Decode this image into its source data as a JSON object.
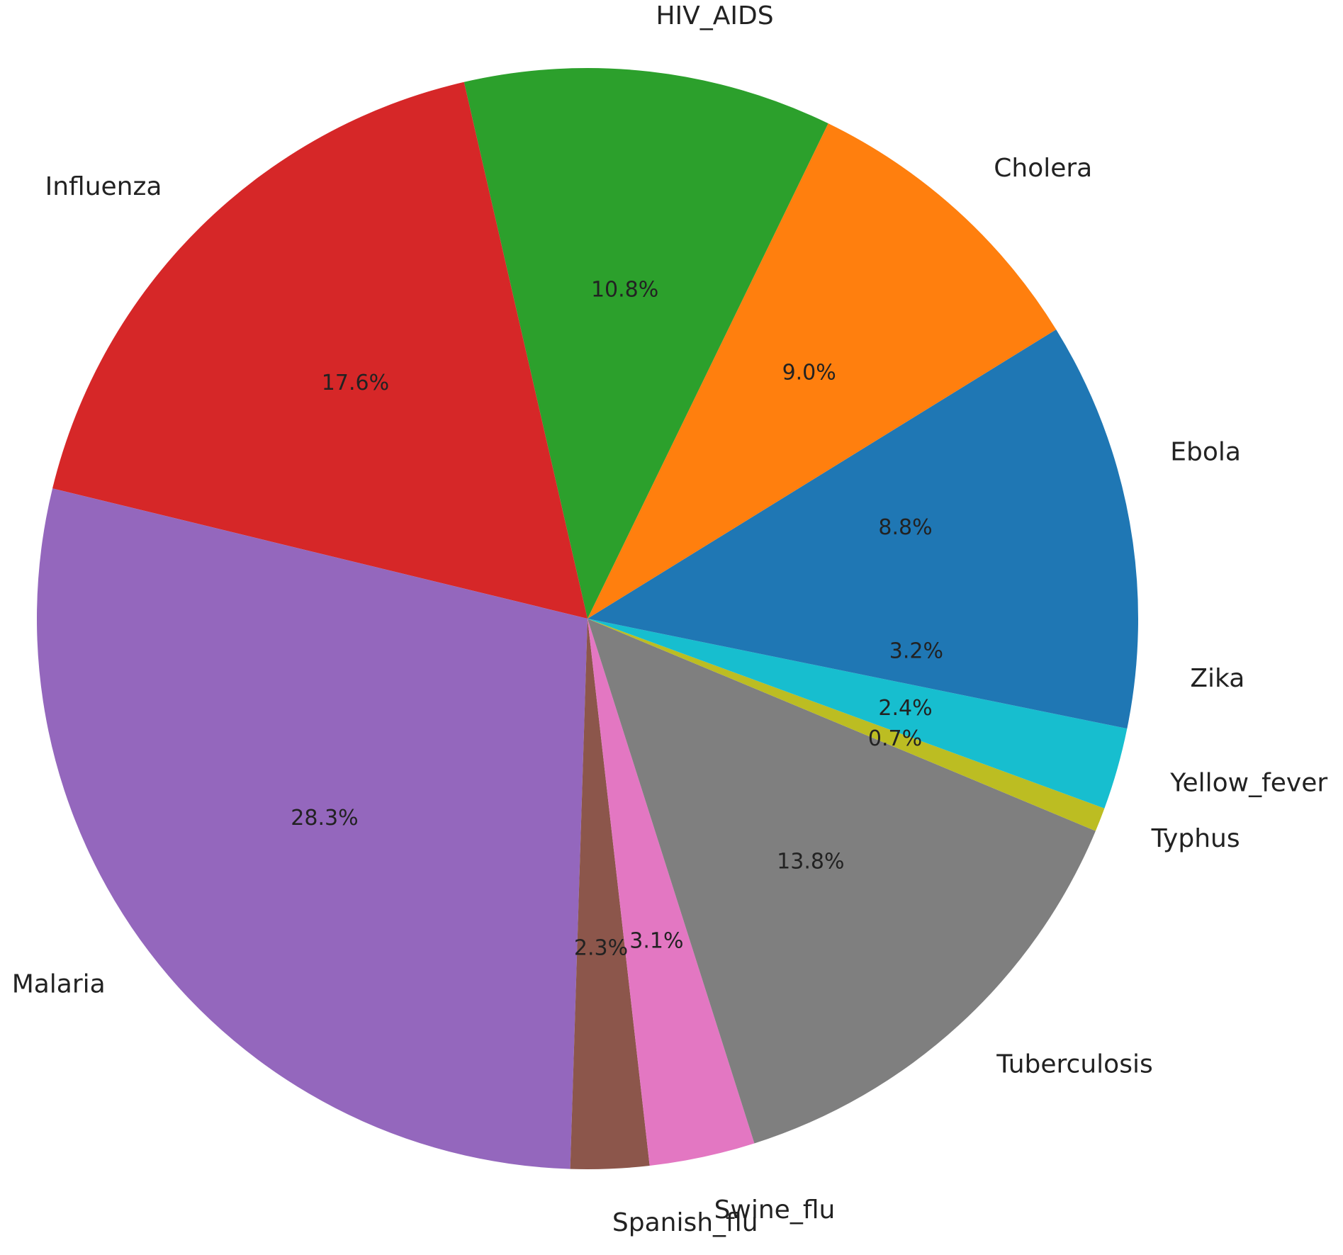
{
  "chart_data": {
    "type": "pie",
    "categories": [
      "Ebola",
      "Cholera",
      "HIV_AIDS",
      "Influenza",
      "Malaria",
      "Spanish_flu",
      "Swine_flu",
      "Tuberculosis",
      "Typhus",
      "Yellow_fever",
      "Zika"
    ],
    "values": [
      8.8,
      9.0,
      10.8,
      17.6,
      28.3,
      2.3,
      3.1,
      13.8,
      0.7,
      2.4,
      3.2
    ],
    "value_labels": [
      "8.8%",
      "9.0%",
      "10.8%",
      "17.6%",
      "28.3%",
      "2.3%",
      "3.1%",
      "13.8%",
      "0.7%",
      "2.4%",
      "3.2%"
    ],
    "colors": [
      "#1f77b4",
      "#ff7f0e",
      "#2ca02c",
      "#d62728",
      "#9467bd",
      "#8c564b",
      "#e377c2",
      "#7f7f7f",
      "#bcbd22",
      "#17becf",
      "#1f77b4"
    ]
  }
}
